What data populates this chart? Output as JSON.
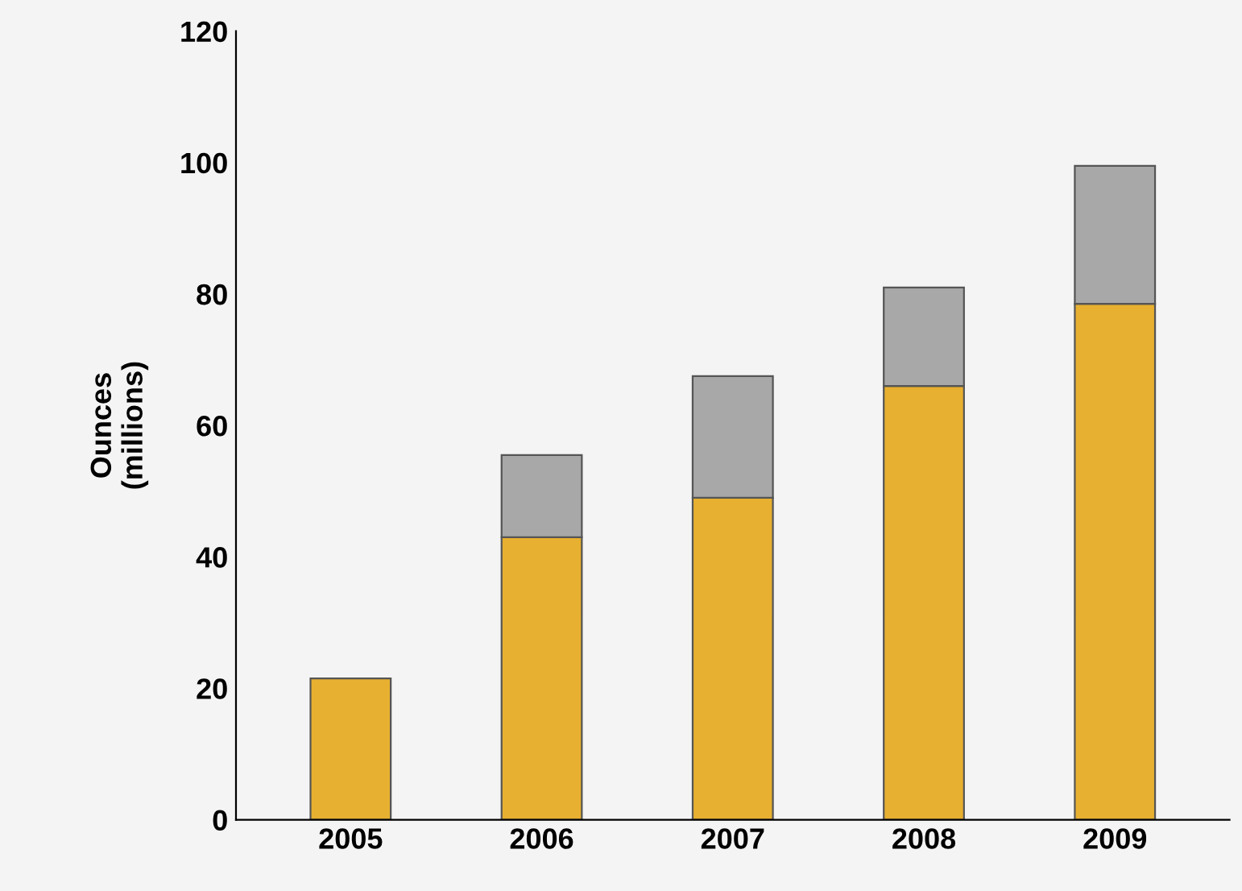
{
  "chart_data": {
    "type": "bar",
    "stacked": true,
    "ylabel": "Ounces\n(millions)",
    "categories": [
      "2005",
      "2006",
      "2007",
      "2008",
      "2009"
    ],
    "series": [
      {
        "color": "#e8b030",
        "values": [
          21.5,
          43,
          49,
          66,
          78.5
        ]
      },
      {
        "color": "#a8a8a8",
        "values": [
          null,
          12.5,
          18.5,
          15,
          21
        ]
      }
    ],
    "ylim": [
      0,
      120
    ],
    "yticks": [
      0,
      20,
      40,
      60,
      80,
      100,
      120
    ],
    "grid": false,
    "legend": false
  }
}
